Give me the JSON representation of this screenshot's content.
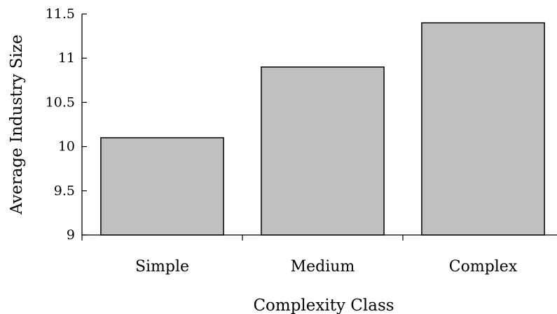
{
  "chart_data": {
    "type": "bar",
    "title": "",
    "xlabel": "Complexity Class",
    "ylabel": "Average Industry Size",
    "categories": [
      "Simple",
      "Medium",
      "Complex"
    ],
    "values": [
      10.1,
      10.9,
      11.4
    ],
    "ylim": [
      9,
      11.5
    ],
    "yticks": [
      9,
      9.5,
      10,
      10.5,
      11,
      11.5
    ],
    "ytick_labels": [
      "9",
      "9.5",
      "10",
      "10.5",
      "11",
      "11.5"
    ],
    "grid": false,
    "legend": "none",
    "bar_color": "#c0c0c0",
    "edge_color": "#000000"
  }
}
